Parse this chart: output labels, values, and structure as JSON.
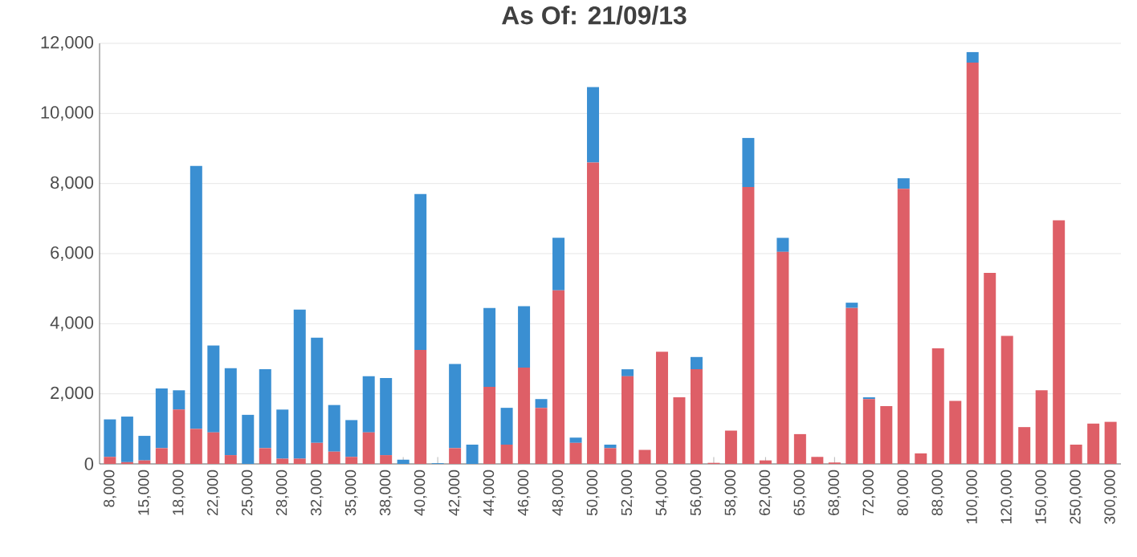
{
  "chart_data": {
    "type": "bar",
    "stacked": true,
    "title": "As Of: 21/09/13",
    "categories": [
      "8,000",
      null,
      "15,000",
      null,
      "18,000",
      null,
      "22,000",
      null,
      "25,000",
      null,
      "28,000",
      null,
      "32,000",
      null,
      "35,000",
      null,
      "38,000",
      null,
      "40,000",
      null,
      "42,000",
      null,
      "44,000",
      null,
      "46,000",
      null,
      "48,000",
      null,
      "50,000",
      null,
      "52,000",
      null,
      "54,000",
      null,
      "56,000",
      null,
      "58,000",
      null,
      "62,000",
      null,
      "65,000",
      null,
      "68,000",
      null,
      "72,000",
      null,
      "80,000",
      null,
      "88,000",
      null,
      "100,000",
      null,
      "120,000",
      null,
      "150,000",
      null,
      "250,000",
      null,
      "300,000"
    ],
    "series": [
      {
        "color": "#de5f67",
        "values": [
          200,
          50,
          100,
          450,
          1550,
          1000,
          900,
          250,
          0,
          450,
          150,
          150,
          600,
          350,
          200,
          900,
          250,
          0,
          3250,
          0,
          450,
          0,
          2200,
          550,
          2750,
          1600,
          4950,
          600,
          8600,
          450,
          2500,
          400,
          3200,
          1900,
          2700,
          30,
          950,
          7900,
          100,
          6050,
          850,
          200,
          40,
          4450,
          1850,
          1650,
          7850,
          300,
          3300,
          1800,
          11450,
          5450,
          3650,
          1050,
          2100,
          6950,
          550,
          1150,
          1200
        ]
      },
      {
        "color": "#3a8fd2",
        "values": [
          1070,
          1300,
          700,
          1700,
          550,
          7500,
          2480,
          2480,
          1400,
          2250,
          1400,
          4250,
          3000,
          1330,
          1050,
          1600,
          2200,
          120,
          4450,
          20,
          2400,
          550,
          2250,
          1050,
          1750,
          250,
          1500,
          150,
          2150,
          100,
          200,
          0,
          0,
          0,
          350,
          0,
          0,
          1400,
          0,
          400,
          0,
          0,
          0,
          150,
          50,
          0,
          300,
          0,
          0,
          0,
          300,
          0,
          0,
          0,
          0,
          0,
          0,
          0,
          0
        ]
      }
    ],
    "ylim": [
      0,
      12000
    ],
    "yticks": [
      {
        "value": 0,
        "label": "0"
      },
      {
        "value": 2000,
        "label": "2,000"
      },
      {
        "value": 4000,
        "label": "4,000"
      },
      {
        "value": 6000,
        "label": "6,000"
      },
      {
        "value": 8000,
        "label": "8,000"
      },
      {
        "value": 10000,
        "label": "10,000"
      },
      {
        "value": 12000,
        "label": "12,000"
      }
    ],
    "grid": "y"
  }
}
